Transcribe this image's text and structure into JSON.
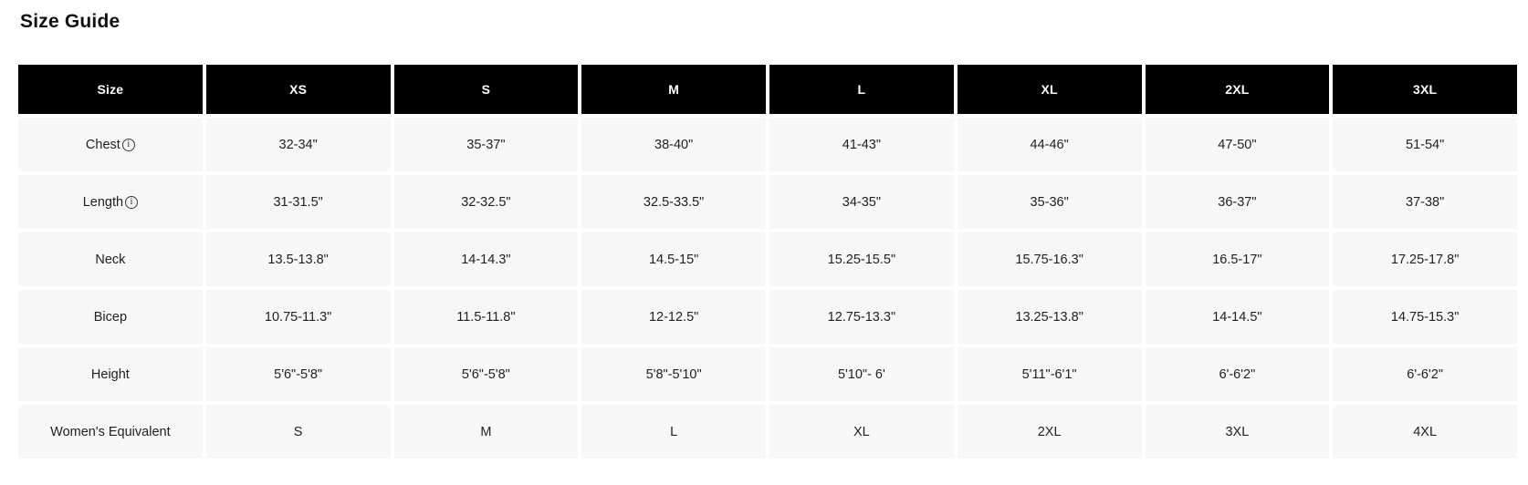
{
  "page": {
    "title": "Size Guide"
  },
  "icons": {
    "info_glyph": "i"
  },
  "colors": {
    "header_bg": "#000000",
    "header_text": "#ffffff",
    "row_bg": "#f7f7f7",
    "body_text": "#212121"
  },
  "table": {
    "columns": [
      "Size",
      "XS",
      "S",
      "M",
      "L",
      "XL",
      "2XL",
      "3XL"
    ],
    "rows": [
      {
        "label": "Chest",
        "has_info_icon": true,
        "values": [
          "32-34\"",
          "35-37\"",
          "38-40\"",
          "41-43\"",
          "44-46\"",
          "47-50\"",
          "51-54\""
        ]
      },
      {
        "label": "Length",
        "has_info_icon": true,
        "values": [
          "31-31.5\"",
          "32-32.5\"",
          "32.5-33.5\"",
          "34-35\"",
          "35-36\"",
          "36-37\"",
          "37-38\""
        ]
      },
      {
        "label": "Neck",
        "has_info_icon": false,
        "values": [
          "13.5-13.8\"",
          "14-14.3\"",
          "14.5-15\"",
          "15.25-15.5\"",
          "15.75-16.3\"",
          "16.5-17\"",
          "17.25-17.8\""
        ]
      },
      {
        "label": "Bicep",
        "has_info_icon": false,
        "values": [
          "10.75-11.3\"",
          "11.5-11.8\"",
          "12-12.5\"",
          "12.75-13.3\"",
          "13.25-13.8\"",
          "14-14.5\"",
          "14.75-15.3\""
        ]
      },
      {
        "label": "Height",
        "has_info_icon": false,
        "values": [
          "5'6\"-5'8\"",
          "5'6\"-5'8\"",
          "5'8\"-5'10\"",
          "5'10\"- 6'",
          "5'11\"-6'1\"",
          "6'-6'2\"",
          "6'-6'2\""
        ]
      },
      {
        "label": "Women's Equivalent",
        "has_info_icon": false,
        "values": [
          "S",
          "M",
          "L",
          "XL",
          "2XL",
          "3XL",
          "4XL"
        ]
      }
    ]
  }
}
